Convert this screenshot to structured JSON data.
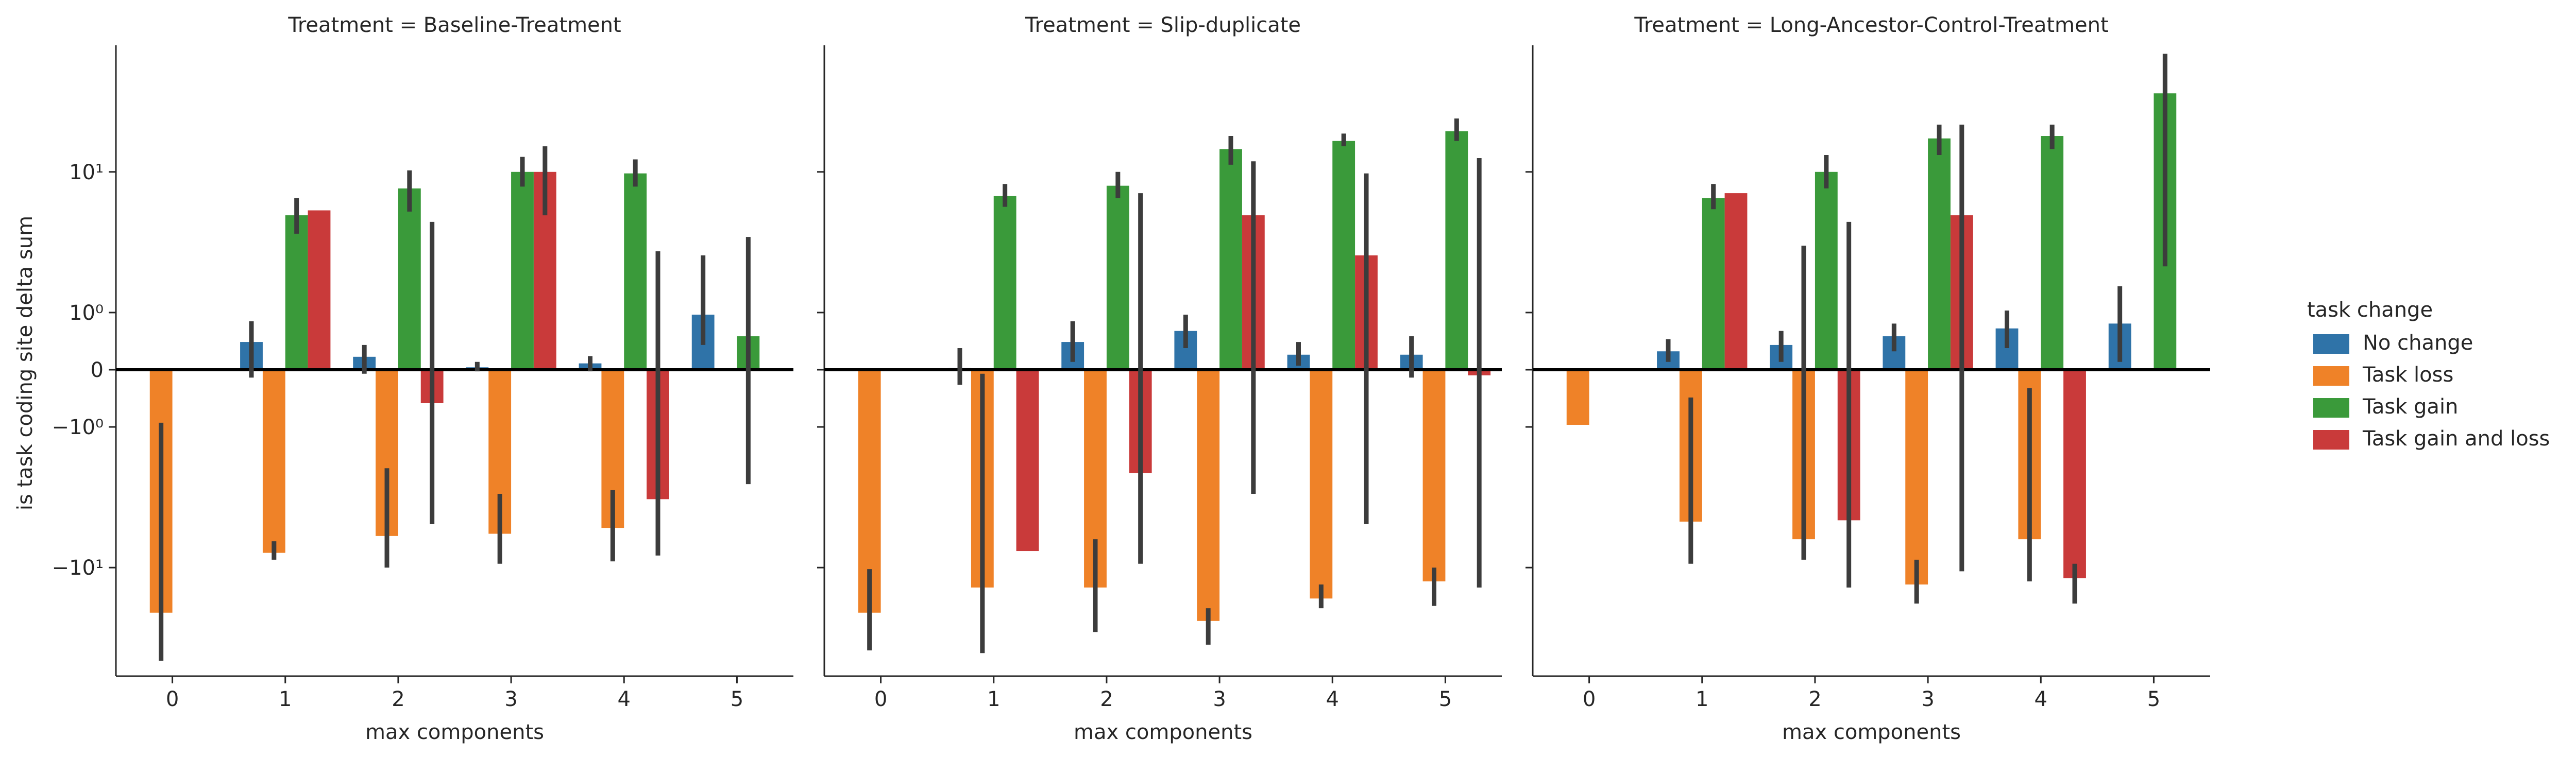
{
  "chart_data": {
    "type": "bar",
    "facet_variable": "Treatment",
    "panels": [
      {
        "title": "Treatment = Baseline-Treatment",
        "categories": [
          "0",
          "1",
          "2",
          "3",
          "4",
          "5"
        ],
        "series": [
          {
            "name": "No change",
            "values": [
              null,
              0.4,
              0.17,
              0.03,
              0.08,
              0.95
            ],
            "ci": [
              null,
              [
                -0.1,
                0.8
              ],
              [
                -0.05,
                0.35
              ],
              [
                -0.02,
                0.1
              ],
              [
                -0.02,
                0.18
              ],
              [
                0.35,
                3.0
              ]
            ]
          },
          {
            "name": "Task loss",
            "values": [
              -18,
              -8.2,
              -6.5,
              -6.3,
              -5.8,
              null
            ],
            "ci": [
              [
                -33,
                -0.9
              ],
              [
                -9.0,
                -7.0
              ],
              [
                -10.0,
                -2.3
              ],
              [
                -9.5,
                -3.5
              ],
              [
                -9.2,
                -3.3
              ],
              null
            ]
          },
          {
            "name": "Task gain",
            "values": [
              null,
              5.5,
              8.0,
              10.0,
              9.8,
              0.5
            ],
            "ci": [
              null,
              [
                4.2,
                7.0
              ],
              [
                5.8,
                10.2
              ],
              [
                8.2,
                12.2
              ],
              [
                8.2,
                11.8
              ],
              [
                -3.0,
                4.0
              ]
            ]
          },
          {
            "name": "Task gain and loss",
            "values": [
              null,
              5.9,
              -0.5,
              10.0,
              -3.8,
              null
            ],
            "ci": [
              null,
              [
                5.9,
                5.9
              ],
              [
                -5.5,
                5.0
              ],
              [
                5.5,
                14.0
              ],
              [
                -8.5,
                3.2
              ],
              null
            ]
          }
        ]
      },
      {
        "title": "Treatment = Slip-duplicate",
        "categories": [
          "0",
          "1",
          "2",
          "3",
          "4",
          "5"
        ],
        "series": [
          {
            "name": "No change",
            "values": [
              null,
              0.02,
              0.4,
              0.6,
              0.2,
              0.2
            ],
            "ci": [
              null,
              [
                -0.2,
                0.3
              ],
              [
                0.1,
                0.8
              ],
              [
                0.3,
                0.95
              ],
              [
                0.05,
                0.4
              ],
              [
                -0.1,
                0.5
              ]
            ]
          },
          {
            "name": "Task loss",
            "values": [
              -18,
              -13,
              -13,
              -20,
              -15,
              -12
            ],
            "ci": [
              [
                -29,
                -10.2
              ],
              [
                -30,
                -0.05
              ],
              [
                -23,
                -6.8
              ],
              [
                -27,
                -17
              ],
              [
                -17,
                -12.5
              ],
              [
                -16.5,
                -10
              ]
            ]
          },
          {
            "name": "Task gain",
            "values": [
              null,
              7.2,
              8.3,
              13.5,
              15.0,
              17.0
            ],
            "ci": [
              null,
              [
                6.2,
                8.5
              ],
              [
                7.0,
                10.0
              ],
              [
                11.0,
                16.0
              ],
              [
                14.0,
                16.5
              ],
              [
                15.0,
                20.0
              ]
            ]
          },
          {
            "name": "Task gain and loss",
            "values": [
              null,
              -8.0,
              -2.5,
              5.5,
              3.0,
              -0.07
            ],
            "ci": [
              null,
              [
                -8.0,
                -8.0
              ],
              [
                -9.5,
                7.5
              ],
              [
                -3.5,
                11.5
              ],
              [
                -5.5,
                9.8
              ],
              [
                -13,
                12
              ]
            ]
          }
        ]
      },
      {
        "title": "Treatment = Long-Ancestor-Control-Treatment",
        "categories": [
          "0",
          "1",
          "2",
          "3",
          "4",
          "5"
        ],
        "series": [
          {
            "name": "No change",
            "values": [
              null,
              0.25,
              0.35,
              0.5,
              0.65,
              0.75
            ],
            "ci": [
              null,
              [
                0.1,
                0.45
              ],
              [
                0.1,
                0.6
              ],
              [
                0.25,
                0.75
              ],
              [
                0.3,
                1.05
              ],
              [
                0.1,
                1.75
              ]
            ]
          },
          {
            "name": "Task loss",
            "values": [
              -0.95,
              -5.3,
              -6.8,
              -12.5,
              -6.8,
              null
            ],
            "ci": [
              null,
              [
                -9.5,
                -0.4
              ],
              [
                -9.0,
                3.5
              ],
              [
                -16,
                -9.0
              ],
              [
                -12,
                -0.25
              ],
              null
            ]
          },
          {
            "name": "Task gain",
            "values": [
              null,
              7.0,
              10.0,
              15.5,
              16.0,
              27.5
            ],
            "ci": [
              null,
              [
                6.0,
                8.5
              ],
              [
                8.0,
                12.5
              ],
              [
                12.5,
                18.5
              ],
              [
                13.5,
                18.5
              ],
              [
                2.5,
                45.0
              ]
            ]
          },
          {
            "name": "Task gain and loss",
            "values": [
              null,
              7.5,
              -5.2,
              5.5,
              -11.5,
              null
            ],
            "ci": [
              null,
              [
                7.5,
                7.5
              ],
              [
                -13,
                5.0
              ],
              [
                -10.5,
                18.5
              ],
              [
                -16,
                -9.5
              ],
              null
            ]
          }
        ]
      }
    ],
    "xlabel": "max components",
    "ylabel": "is task coding site delta sum",
    "yscale": "symlog",
    "y_ticks": [
      {
        "value": 10,
        "label": "10¹"
      },
      {
        "value": 1,
        "label": "10⁰"
      },
      {
        "value": 0,
        "label": "0"
      },
      {
        "value": -1,
        "label": "−10⁰"
      },
      {
        "value": -10,
        "label": "−10¹"
      }
    ],
    "ylim": [
      -40,
      50
    ],
    "legend": {
      "title": "task change",
      "position": "right"
    },
    "colors": {
      "No change": "#2f73a8",
      "Task loss": "#ef8228",
      "Task gain": "#3a9a3a",
      "Task gain and loss": "#c93a3a"
    },
    "errorbar_color": "#3c3c3c",
    "zero_line": true,
    "grid": false
  }
}
